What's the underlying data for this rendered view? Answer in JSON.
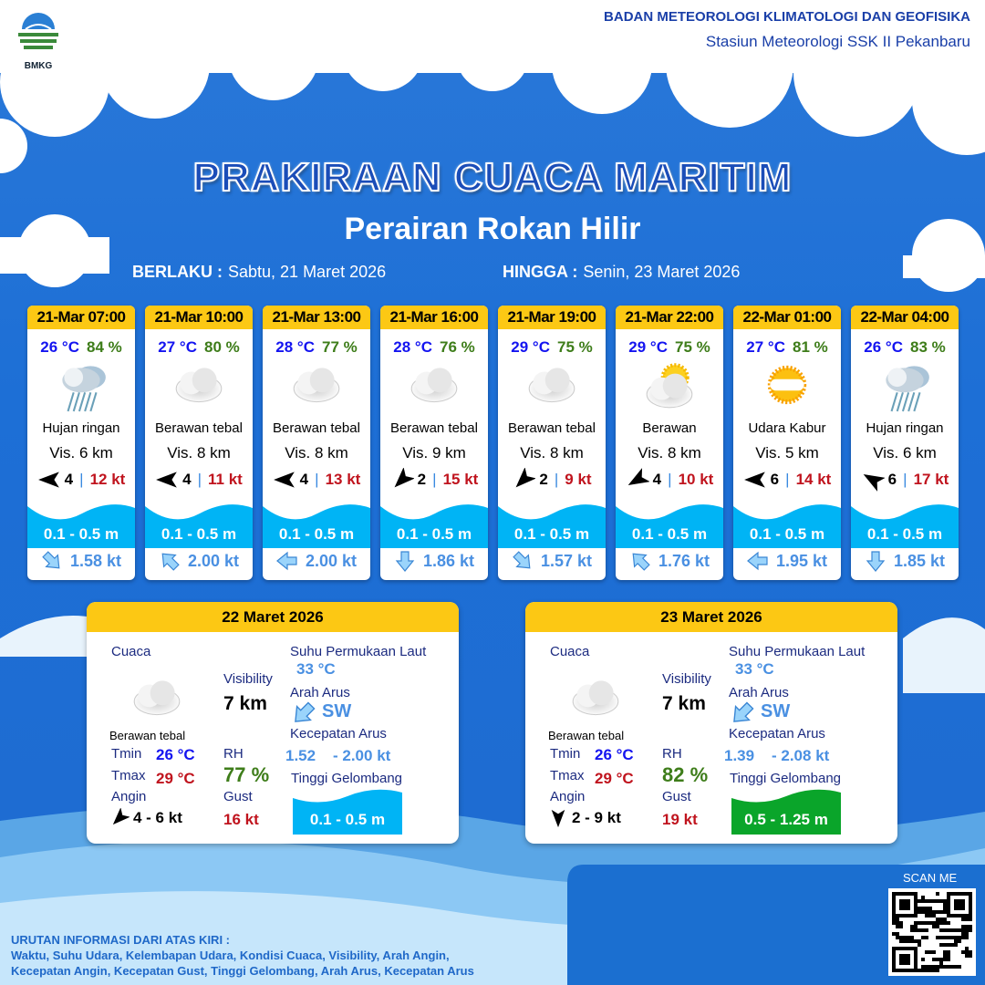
{
  "header": {
    "logo_text": "BMKG",
    "org_name": "BADAN METEOROLOGI KLIMATOLOGI DAN GEOFISIKA",
    "station": "Stasiun Meteorologi SSK II Pekanbaru"
  },
  "title": "PRAKIRAAN CUACA MARITIM",
  "subtitle": "Perairan Rokan Hilir",
  "validity": {
    "from_label": "BERLAKU :",
    "from_date": "Sabtu, 21 Maret 2026",
    "to_label": "HINGGA :",
    "to_date": "Senin, 23 Maret 2026"
  },
  "colors": {
    "header_yellow": "#fcc814",
    "temp": "#1414f0",
    "rh": "#3e7d1a",
    "gust": "#c0141e",
    "wave_low": "#00b4f5",
    "wave_mid": "#0aa52a",
    "current": "#4a90e2"
  },
  "forecasts": [
    {
      "time": "21-Mar 07:00",
      "temp": "26 °C",
      "rh": "84 %",
      "icon": "rain-cloud-icon",
      "condition": "Hujan ringan",
      "vis": "Vis. 6 km",
      "wind_dir_deg": 270,
      "wind": "4",
      "gust": "12 kt",
      "wave": "0.1 - 0.5 m",
      "current_dir_deg": 135,
      "current": "1.58 kt"
    },
    {
      "time": "21-Mar 10:00",
      "temp": "27 °C",
      "rh": "80 %",
      "icon": "cloud-icon",
      "condition": "Berawan tebal",
      "vis": "Vis. 8 km",
      "wind_dir_deg": 270,
      "wind": "4",
      "gust": "11 kt",
      "wave": "0.1 - 0.5 m",
      "current_dir_deg": 315,
      "current": "2.00 kt"
    },
    {
      "time": "21-Mar 13:00",
      "temp": "28 °C",
      "rh": "77 %",
      "icon": "cloud-icon",
      "condition": "Berawan tebal",
      "vis": "Vis. 8 km",
      "wind_dir_deg": 270,
      "wind": "4",
      "gust": "13 kt",
      "wave": "0.1 - 0.5 m",
      "current_dir_deg": 270,
      "current": "2.00 kt"
    },
    {
      "time": "21-Mar 16:00",
      "temp": "28 °C",
      "rh": "76 %",
      "icon": "cloud-icon",
      "condition": "Berawan tebal",
      "vis": "Vis.  9 km",
      "wind_dir_deg": 225,
      "wind": "2",
      "gust": "15 kt",
      "wave": "0.1 - 0.5 m",
      "current_dir_deg": 180,
      "current": "1.86 kt"
    },
    {
      "time": "21-Mar 19:00",
      "temp": "29 °C",
      "rh": "75 %",
      "icon": "cloud-icon",
      "condition": "Berawan tebal",
      "vis": "Vis.  8 km",
      "wind_dir_deg": 225,
      "wind": "2",
      "gust": "9 kt",
      "wave": "0.1 - 0.5 m",
      "current_dir_deg": 135,
      "current": "1.57 kt"
    },
    {
      "time": "21-Mar 22:00",
      "temp": "29 °C",
      "rh": "75 %",
      "icon": "partly-cloudy-icon",
      "condition": "Berawan",
      "vis": "Vis.  8 km",
      "wind_dir_deg": 240,
      "wind": "4",
      "gust": "10 kt",
      "wave": "0.1 - 0.5 m",
      "current_dir_deg": 315,
      "current": "1.76 kt"
    },
    {
      "time": "22-Mar 01:00",
      "temp": "27 °C",
      "rh": "81 %",
      "icon": "haze-icon",
      "condition": "Udara Kabur",
      "vis": "Vis.  5 km",
      "wind_dir_deg": 270,
      "wind": "6",
      "gust": "14 kt",
      "wave": "0.1 - 0.5 m",
      "current_dir_deg": 270,
      "current": "1.95 kt"
    },
    {
      "time": "22-Mar 04:00",
      "temp": "26 °C",
      "rh": "83 %",
      "icon": "rain-cloud-icon",
      "condition": "Hujan ringan",
      "vis": "Vis.  6 km",
      "wind_dir_deg": 300,
      "wind": "6",
      "gust": "17 kt",
      "wave": "0.1 - 0.5 m",
      "current_dir_deg": 180,
      "current": "1.85 kt"
    }
  ],
  "daily": [
    {
      "date": "22 Maret 2026",
      "weather_label": "Cuaca",
      "icon": "cloud-icon",
      "condition": "Berawan tebal",
      "tmin_label": "Tmin",
      "tmin": "26 °C",
      "tmax_label": "Tmax",
      "tmax": "29 °C",
      "wind_label": "Angin",
      "wind_dir_deg": 225,
      "wind": "4  - 6 kt",
      "vis_label": "Visibility",
      "vis": "7 km",
      "rh_label": "RH",
      "rh": "77 %",
      "gust_label": "Gust",
      "gust": "16 kt",
      "sst_label": "Suhu Permukaan Laut",
      "sst": "33 °C",
      "cur_dir_label": "Arah Arus",
      "cur_dir": "SW",
      "cur_dir_deg": 225,
      "cur_speed_label": "Kecepatan Arus",
      "cur_min": "1.52",
      "cur_max": "- 2.00 kt",
      "wave_label": "Tinggi Gelombang",
      "wave": "0.1 - 0.5 m",
      "wave_color": "#00b4f5"
    },
    {
      "date": "23 Maret 2026",
      "weather_label": "Cuaca",
      "icon": "cloud-icon",
      "condition": "Berawan tebal",
      "tmin_label": "Tmin",
      "tmin": "26 °C",
      "tmax_label": "Tmax",
      "tmax": "29 °C",
      "wind_label": "Angin",
      "wind_dir_deg": 180,
      "wind": "2  - 9 kt",
      "vis_label": "Visibility",
      "vis": "7 km",
      "rh_label": "RH",
      "rh": "82 %",
      "gust_label": "Gust",
      "gust": "19 kt",
      "sst_label": "Suhu Permukaan Laut",
      "sst": "33 °C",
      "cur_dir_label": "Arah Arus",
      "cur_dir": "SW",
      "cur_dir_deg": 225,
      "cur_speed_label": "Kecepatan Arus",
      "cur_min": "1.39",
      "cur_max": "- 2.08 kt",
      "wave_label": "Tinggi Gelombang",
      "wave": "0.5 - 1.25 m",
      "wave_color": "#0aa52a"
    }
  ],
  "footer": {
    "legend_title": "URUTAN INFORMASI DARI ATAS KIRI :",
    "legend_line1": "Waktu, Suhu Udara, Kelembapan Udara, Kondisi Cuaca, Visibility, Arah Angin,",
    "legend_line2": "Kecepatan Angin, Kecepatan Gust, Tinggi Gelombang, Arah Arus, Kecepatan Arus",
    "scan_label": "SCAN ME"
  }
}
